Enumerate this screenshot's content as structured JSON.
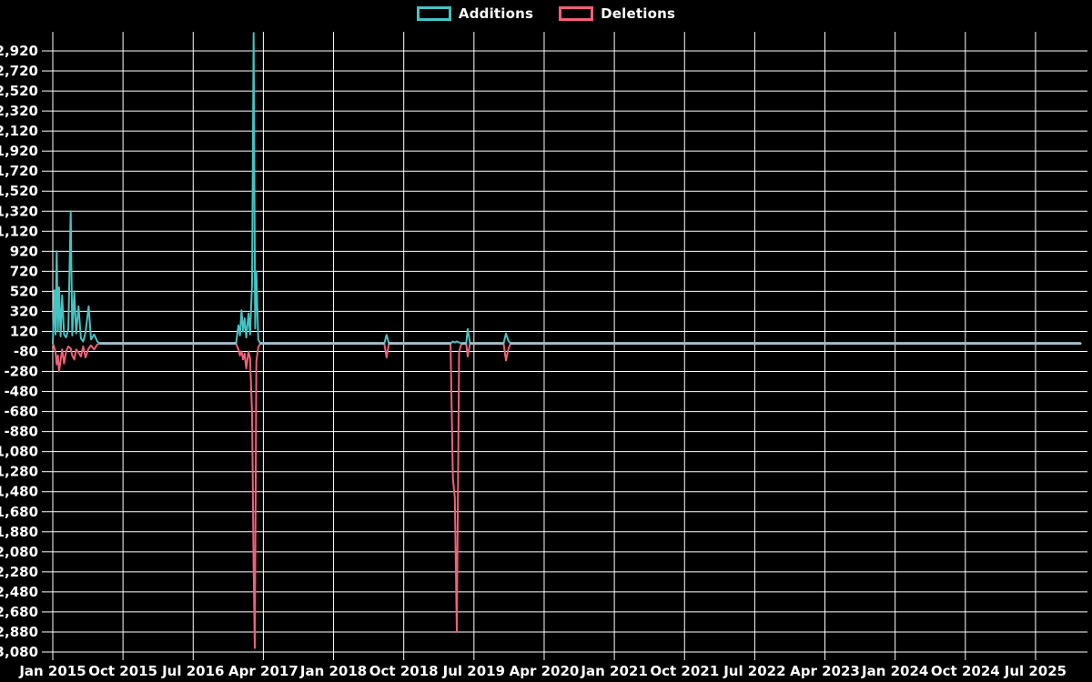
{
  "legend": {
    "items": [
      {
        "label": "Additions",
        "color": "#46c3c3"
      },
      {
        "label": "Deletions",
        "color": "#f2607a"
      }
    ]
  },
  "chart_data": {
    "type": "line",
    "title": "",
    "grid": true,
    "legend_position": "top-center",
    "background": "#000000",
    "gridline_color": "#ffffff",
    "text_color": "#ffffff",
    "x_unit": "months since Jan 2015",
    "x_domain": [
      0,
      131.8
    ],
    "x_axis": {
      "tick_labels": [
        "Jan 2015",
        "Oct 2015",
        "Jul 2016",
        "Apr 2017",
        "Jan 2018",
        "Oct 2018",
        "Jul 2019",
        "Apr 2020",
        "Jan 2021",
        "Oct 2021",
        "Jul 2022",
        "Apr 2023",
        "Jan 2024",
        "Oct 2024",
        "Jul 2025"
      ],
      "tick_month_offsets": [
        0,
        9,
        18,
        27,
        36,
        45,
        54,
        63,
        72,
        81,
        90,
        99,
        108,
        117,
        126
      ]
    },
    "y_axis": {
      "tick_values": [
        2920,
        2720,
        2520,
        2320,
        2120,
        1920,
        1720,
        1520,
        1320,
        1120,
        920,
        720,
        520,
        320,
        120,
        -80,
        -280,
        -480,
        -680,
        -880,
        -1080,
        -1280,
        -1480,
        -1680,
        -1880,
        -2080,
        -2280,
        -2480,
        -2680,
        -2880,
        -3080
      ],
      "tick_labels": [
        "2,920",
        "2,720",
        "2,520",
        "2,320",
        "2,120",
        "1,920",
        "1,720",
        "1,520",
        "1,320",
        "1,120",
        "920",
        "720",
        "520",
        "320",
        "120",
        "-80",
        "-280",
        "-480",
        "-680",
        "-880",
        "-1,080",
        "-1,280",
        "-1,480",
        "-1,680",
        "-1,880",
        "-2,080",
        "-2,280",
        "-2,480",
        "-2,680",
        "-2,880",
        "-3,080"
      ],
      "tick_step": 200,
      "ylim": [
        -3080,
        2920
      ]
    },
    "series": [
      {
        "name": "Additions",
        "color": "#46c3c3",
        "points": [
          [
            0,
            0
          ],
          [
            0.2,
            530
          ],
          [
            0.35,
            90
          ],
          [
            0.5,
            920
          ],
          [
            0.65,
            120
          ],
          [
            0.8,
            560
          ],
          [
            1.0,
            70
          ],
          [
            1.2,
            480
          ],
          [
            1.45,
            90
          ],
          [
            1.7,
            60
          ],
          [
            2.0,
            140
          ],
          [
            2.3,
            1320
          ],
          [
            2.5,
            80
          ],
          [
            2.75,
            520
          ],
          [
            3.0,
            100
          ],
          [
            3.3,
            370
          ],
          [
            3.6,
            50
          ],
          [
            3.9,
            20
          ],
          [
            4.2,
            110
          ],
          [
            4.6,
            370
          ],
          [
            4.9,
            40
          ],
          [
            5.3,
            90
          ],
          [
            5.7,
            20
          ],
          [
            6.0,
            0
          ],
          [
            23.5,
            0
          ],
          [
            23.8,
            180
          ],
          [
            24.0,
            80
          ],
          [
            24.2,
            330
          ],
          [
            24.4,
            120
          ],
          [
            24.6,
            250
          ],
          [
            24.8,
            60
          ],
          [
            25.1,
            300
          ],
          [
            25.3,
            90
          ],
          [
            25.55,
            600
          ],
          [
            25.75,
            3100
          ],
          [
            25.95,
            150
          ],
          [
            26.1,
            720
          ],
          [
            26.35,
            40
          ],
          [
            26.6,
            0
          ],
          [
            42.5,
            0
          ],
          [
            42.8,
            85
          ],
          [
            43.1,
            0
          ],
          [
            51.0,
            0
          ],
          [
            51.3,
            20
          ],
          [
            51.55,
            10
          ],
          [
            51.8,
            20
          ],
          [
            52.1,
            10
          ],
          [
            52.4,
            0
          ],
          [
            53.0,
            0
          ],
          [
            53.2,
            145
          ],
          [
            53.5,
            0
          ],
          [
            57.8,
            0
          ],
          [
            58.1,
            100
          ],
          [
            58.4,
            30
          ],
          [
            58.7,
            0
          ],
          [
            131.8,
            0
          ]
        ]
      },
      {
        "name": "Deletions",
        "color": "#f2607a",
        "points": [
          [
            0,
            0
          ],
          [
            0.2,
            -40
          ],
          [
            0.35,
            -90
          ],
          [
            0.5,
            -210
          ],
          [
            0.65,
            -120
          ],
          [
            0.8,
            -280
          ],
          [
            1.0,
            -170
          ],
          [
            1.2,
            -60
          ],
          [
            1.45,
            -200
          ],
          [
            1.7,
            -80
          ],
          [
            2.0,
            -30
          ],
          [
            2.3,
            -50
          ],
          [
            2.5,
            -120
          ],
          [
            2.75,
            -160
          ],
          [
            3.0,
            -60
          ],
          [
            3.3,
            -90
          ],
          [
            3.6,
            -130
          ],
          [
            3.9,
            -30
          ],
          [
            4.2,
            -140
          ],
          [
            4.6,
            -50
          ],
          [
            4.9,
            -20
          ],
          [
            5.3,
            -60
          ],
          [
            5.7,
            -10
          ],
          [
            6.0,
            0
          ],
          [
            23.5,
            0
          ],
          [
            23.8,
            -60
          ],
          [
            24.0,
            -120
          ],
          [
            24.2,
            -80
          ],
          [
            24.4,
            -160
          ],
          [
            24.6,
            -100
          ],
          [
            24.8,
            -250
          ],
          [
            25.1,
            -80
          ],
          [
            25.3,
            -150
          ],
          [
            25.55,
            -700
          ],
          [
            25.75,
            -2240
          ],
          [
            25.9,
            -3040
          ],
          [
            26.1,
            -180
          ],
          [
            26.35,
            -40
          ],
          [
            26.6,
            0
          ],
          [
            42.5,
            0
          ],
          [
            42.8,
            -140
          ],
          [
            43.1,
            0
          ],
          [
            51.0,
            0
          ],
          [
            51.3,
            -1350
          ],
          [
            51.55,
            -1540
          ],
          [
            51.8,
            -2880
          ],
          [
            52.1,
            -80
          ],
          [
            52.4,
            0
          ],
          [
            53.0,
            0
          ],
          [
            53.2,
            -130
          ],
          [
            53.5,
            0
          ],
          [
            57.8,
            0
          ],
          [
            58.1,
            -170
          ],
          [
            58.4,
            -60
          ],
          [
            58.7,
            0
          ],
          [
            131.8,
            0
          ]
        ]
      }
    ],
    "baseline_overlap_color": "#a7bdc9",
    "baseline_overlap_segments": [
      [
        6.0,
        23.5
      ],
      [
        26.6,
        42.5
      ],
      [
        43.1,
        51.0
      ],
      [
        52.4,
        53.0
      ],
      [
        53.5,
        57.8
      ],
      [
        58.7,
        131.8
      ]
    ]
  }
}
